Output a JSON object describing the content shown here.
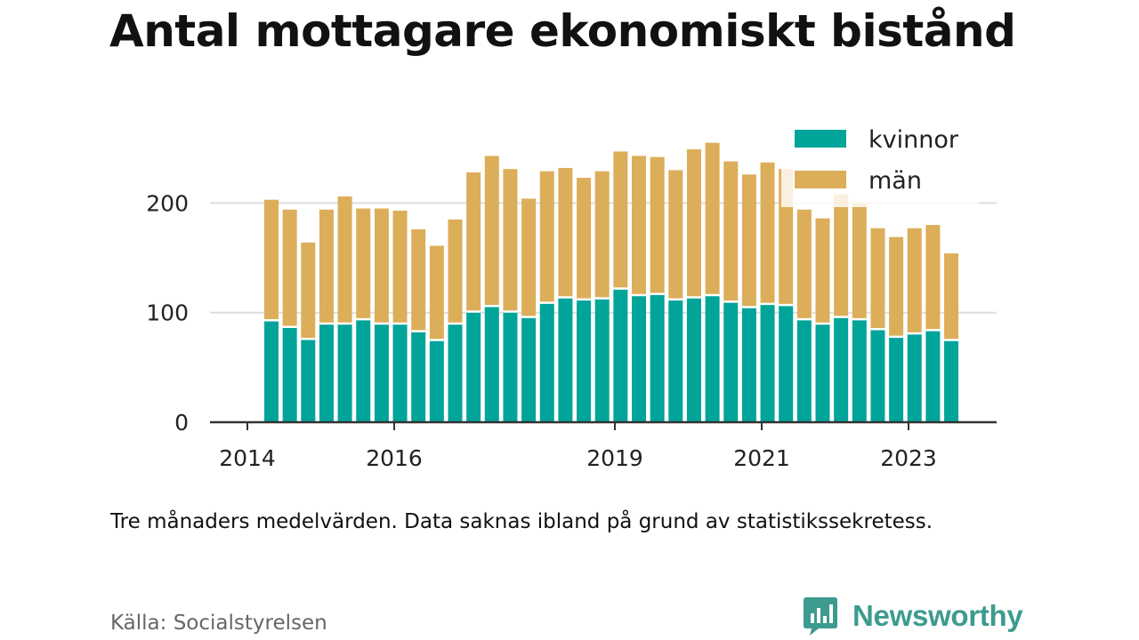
{
  "title": "Antal mottagare ekonomiskt bistånd",
  "note": "Tre månaders medelvärden. Data saknas ibland på grund av statistikssekretess.",
  "source": "Källa: Socialstyrelsen",
  "logo": {
    "text": "Newsworthy",
    "icon": "chart-bubble-icon"
  },
  "colors": {
    "kvinnor": "#00a499",
    "man": "#dcae5a",
    "axis": "#333333",
    "grid": "#dddddd",
    "logo": "#3d9b8f"
  },
  "chart_data": {
    "type": "bar",
    "stacked": true,
    "x_ticks": [
      "2014",
      "2016",
      "2019",
      "2021",
      "2023"
    ],
    "y_ticks": [
      "0",
      "100",
      "200"
    ],
    "ylim": [
      0,
      260
    ],
    "grid": true,
    "legend_position": "top-right",
    "series": [
      {
        "name": "kvinnor",
        "values": [
          93,
          87,
          76,
          90,
          90,
          94,
          90,
          90,
          83,
          75,
          90,
          101,
          106,
          101,
          96,
          109,
          114,
          112,
          113,
          122,
          116,
          117,
          112,
          114,
          116,
          110,
          105,
          108,
          107,
          94,
          90,
          96,
          94,
          85,
          78,
          81,
          84,
          75
        ]
      },
      {
        "name": "män",
        "values": [
          110,
          107,
          88,
          104,
          116,
          101,
          105,
          103,
          93,
          86,
          95,
          127,
          137,
          130,
          108,
          120,
          118,
          111,
          116,
          125,
          127,
          125,
          118,
          135,
          139,
          128,
          121,
          129,
          124,
          100,
          96,
          112,
          106,
          92,
          91,
          96,
          96,
          79
        ]
      }
    ]
  }
}
